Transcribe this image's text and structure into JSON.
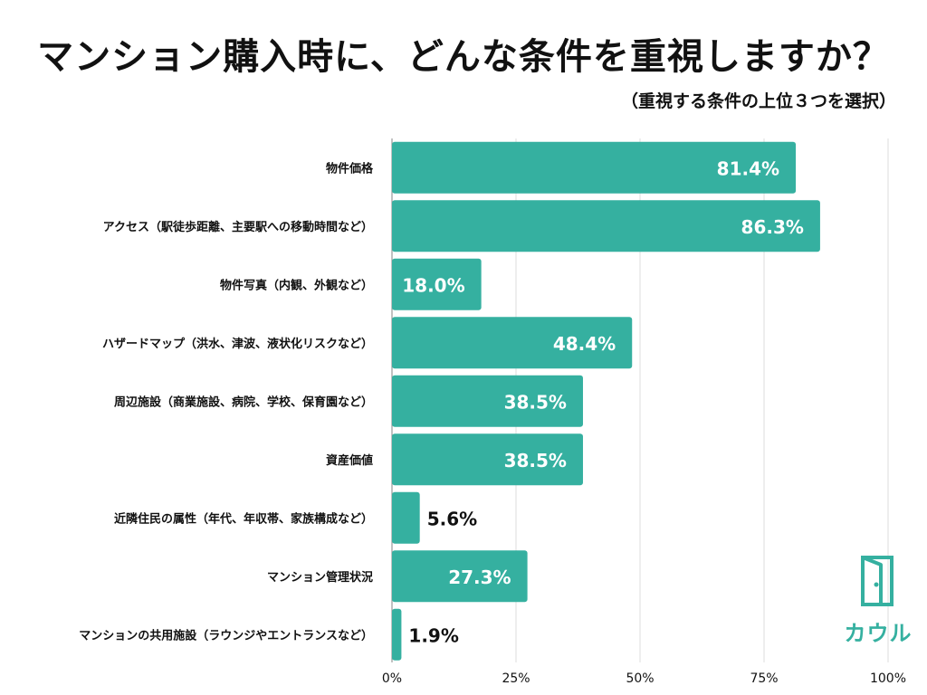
{
  "title": "マンション購入時に、どんな条件を重視しますか？",
  "subtitle": "（重視する条件の上位３つを選択）",
  "logo": {
    "text": "カウル",
    "icon": "door-icon"
  },
  "colors": {
    "bar": "#35b0a0",
    "grid": "#dddddd",
    "axis": "#999999"
  },
  "chart_data": {
    "type": "bar",
    "orientation": "horizontal",
    "title": "マンション購入時に、どんな条件を重視しますか？",
    "subtitle": "（重視する条件の上位３つを選択）",
    "categories": [
      "物件価格",
      "アクセス（駅徒歩距離、主要駅への移動時間など）",
      "物件写真（内観、外観など）",
      "ハザードマップ（洪水、津波、液状化リスクなど）",
      "周辺施設（商業施設、病院、学校、保育園など）",
      "資産価値",
      "近隣住民の属性（年代、年収帯、家族構成など）",
      "マンション管理状況",
      "マンションの共用施設（ラウンジやエントランスなど）"
    ],
    "values": [
      81.4,
      86.3,
      18.0,
      48.4,
      38.5,
      38.5,
      5.6,
      27.3,
      1.9
    ],
    "value_labels": [
      "81.4%",
      "86.3%",
      "18.0%",
      "48.4%",
      "38.5%",
      "38.5%",
      "5.6%",
      "27.3%",
      "1.9%"
    ],
    "xlim": [
      0,
      100
    ],
    "xticks": [
      0,
      25,
      50,
      75,
      100
    ],
    "xtick_labels": [
      "0%",
      "25%",
      "50%",
      "75%",
      "100%"
    ],
    "xlabel": "",
    "ylabel": "",
    "grid": true
  }
}
